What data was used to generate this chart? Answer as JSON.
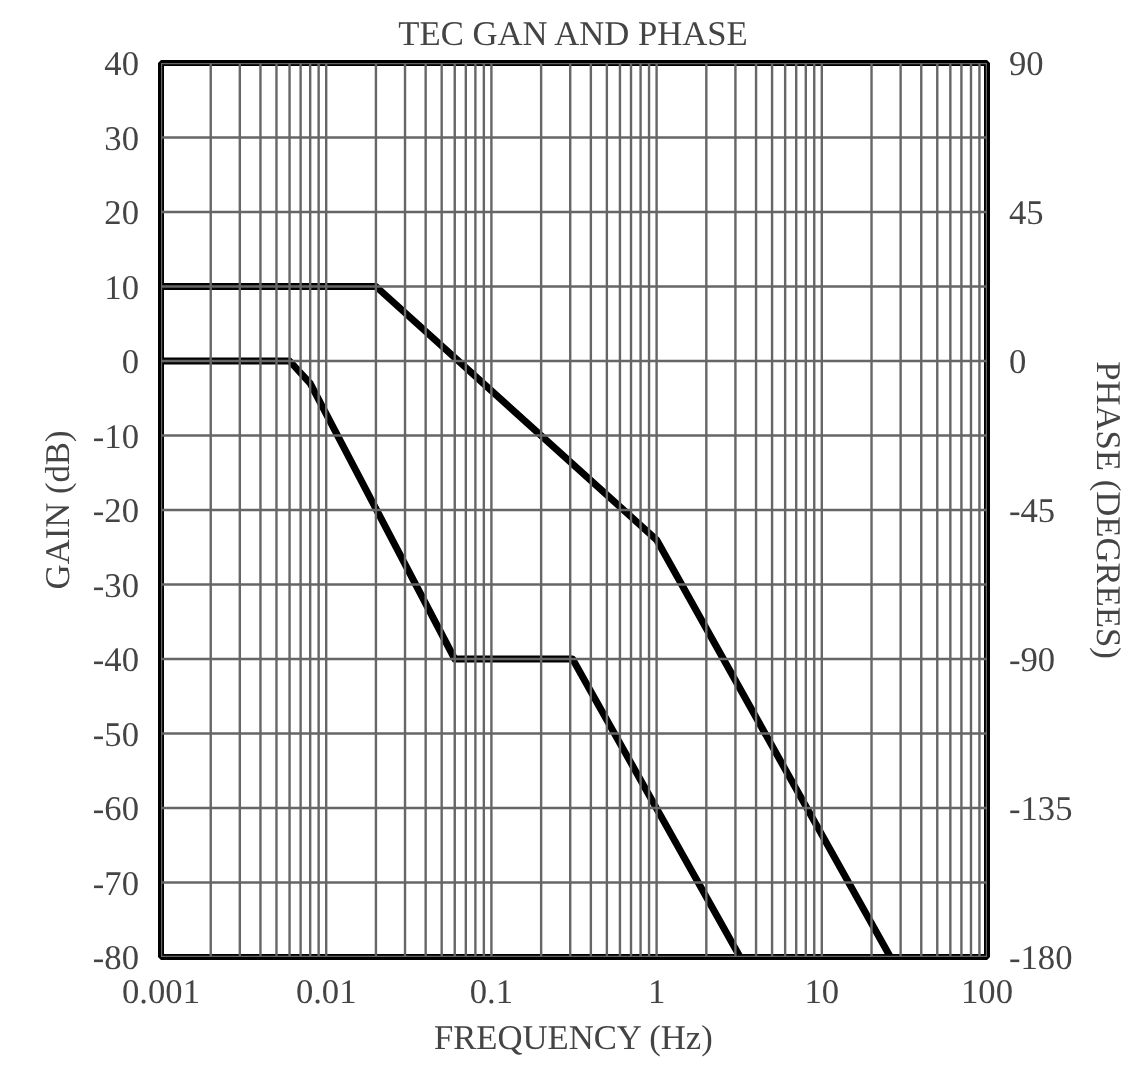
{
  "chart_data": {
    "type": "line",
    "title": "TEC GAN AND PHASE",
    "xlabel": "FREQUENCY (Hz)",
    "ylabel": "GAIN (dB)",
    "y2label": "PHASE (DEGREES)",
    "log": "x",
    "grid": true,
    "line_style": "solid",
    "marker": "none",
    "xlim": [
      0.001,
      100
    ],
    "ylim": [
      -80,
      40
    ],
    "y2lim": [
      -180,
      90
    ],
    "xticks": [
      0.001,
      {
        "value": 0.002,
        "label": null
      },
      {
        "value": 0.003,
        "label": null
      },
      {
        "value": 0.004,
        "label": null
      },
      {
        "value": 0.005,
        "label": null
      },
      {
        "value": 0.006,
        "label": null
      },
      {
        "value": 0.007,
        "label": null
      },
      {
        "value": 0.008,
        "label": null
      },
      {
        "value": 0.009,
        "label": null
      },
      0.01,
      {
        "value": 0.02,
        "label": null
      },
      {
        "value": 0.03,
        "label": null
      },
      {
        "value": 0.04,
        "label": null
      },
      {
        "value": 0.05,
        "label": null
      },
      {
        "value": 0.06,
        "label": null
      },
      {
        "value": 0.07,
        "label": null
      },
      {
        "value": 0.08,
        "label": null
      },
      {
        "value": 0.09,
        "label": null
      },
      0.1,
      {
        "value": 0.2,
        "label": null
      },
      {
        "value": 0.3,
        "label": null
      },
      {
        "value": 0.4,
        "label": null
      },
      {
        "value": 0.5,
        "label": null
      },
      {
        "value": 0.6,
        "label": null
      },
      {
        "value": 0.7,
        "label": null
      },
      {
        "value": 0.8,
        "label": null
      },
      {
        "value": 0.9,
        "label": null
      },
      1,
      {
        "value": 2,
        "label": null
      },
      {
        "value": 3,
        "label": null
      },
      {
        "value": 4,
        "label": null
      },
      {
        "value": 5,
        "label": null
      },
      {
        "value": 6,
        "label": null
      },
      {
        "value": 7,
        "label": null
      },
      {
        "value": 8,
        "label": null
      },
      {
        "value": 9,
        "label": null
      },
      10,
      {
        "value": 20,
        "label": null
      },
      {
        "value": 30,
        "label": null
      },
      {
        "value": 40,
        "label": null
      },
      {
        "value": 50,
        "label": null
      },
      {
        "value": 60,
        "label": null
      },
      {
        "value": 70,
        "label": null
      },
      {
        "value": 80,
        "label": null
      },
      {
        "value": 90,
        "label": null
      },
      100
    ],
    "yticks": [
      40,
      30,
      20,
      10,
      0,
      -10,
      -20,
      -30,
      -40,
      -50,
      -60,
      -70,
      -80
    ],
    "y2ticks": [
      90,
      45,
      0,
      -45,
      -90,
      -135,
      -180
    ],
    "series": [
      {
        "color": "#000000",
        "x": [
          0.001,
          0.02,
          1,
          26
        ],
        "values": [
          10,
          10,
          -24,
          -80
        ]
      },
      {
        "color": "#000000",
        "x": [
          0.001,
          0.006,
          0.008,
          0.06,
          0.31,
          3.2
        ],
        "values": [
          0,
          0,
          -3,
          -40,
          -40,
          -80
        ]
      }
    ]
  }
}
